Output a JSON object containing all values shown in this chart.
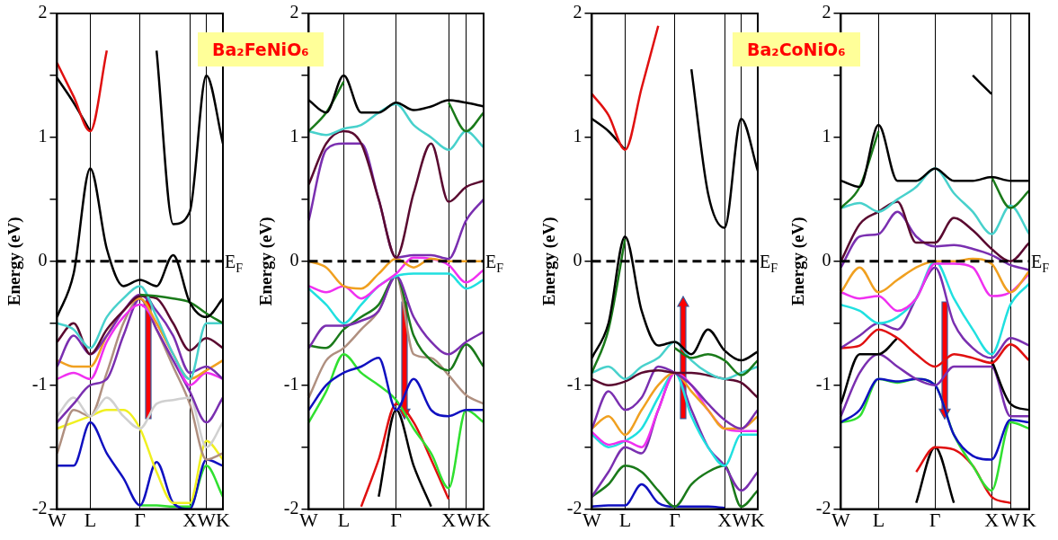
{
  "chart_data": [
    {
      "type": "line",
      "ylabel": "Energy (eV)",
      "annotations": [
        "Ba₂FeNiO₆"
      ],
      "grid": "x",
      "ylim": [
        -2,
        2
      ],
      "categories": [
        "W",
        null,
        "L",
        null,
        null,
        "Γ",
        null,
        null,
        "X",
        "W",
        "K"
      ],
      "yticks": [
        -2,
        {
          "value": -1.5,
          "label": null
        },
        -1,
        {
          "value": -0.5,
          "label": null
        },
        0,
        {
          "value": 0.5,
          "label": null
        },
        1,
        {
          "value": 1.5,
          "label": null
        },
        2
      ],
      "ref_lines": [
        {
          "axis": "y",
          "value": 0,
          "label": "E$_{F}$",
          "line_style": "dashed",
          "color": "#000000"
        }
      ],
      "series": [
        {
          "color": "#e01010",
          "values": [
            1.6,
            1.33,
            1.05,
            1.7,
            null,
            null,
            null,
            null,
            null,
            null,
            null
          ]
        },
        {
          "color": "#000000",
          "values": [
            1.48,
            1.28,
            1.05,
            null,
            null,
            null,
            1.7,
            0.3,
            0.4,
            1.5,
            0.95
          ]
        },
        {
          "color": "#000000",
          "values": [
            -0.45,
            -0.1,
            0.75,
            0.1,
            -0.2,
            -0.15,
            -0.2,
            0.05,
            -0.33,
            -0.45,
            -0.3
          ]
        },
        {
          "color": "#1a7a1a",
          "values": [
            null,
            null,
            null,
            null,
            null,
            -0.27,
            -0.28,
            -0.3,
            -0.33,
            -0.42,
            -0.5
          ]
        },
        {
          "color": "#48d1cc",
          "values": [
            -0.5,
            -0.55,
            -0.7,
            -0.45,
            -0.3,
            -0.2,
            -0.45,
            -0.75,
            -0.95,
            -0.5,
            -0.5
          ]
        },
        {
          "color": "#5a0a30",
          "values": [
            -0.65,
            -0.5,
            -0.75,
            -0.55,
            -0.4,
            -0.28,
            -0.3,
            -0.5,
            -0.72,
            -0.62,
            -0.7
          ]
        },
        {
          "color": "#7a2fb0",
          "values": [
            -0.85,
            -0.6,
            -0.75,
            -0.6,
            -0.4,
            -0.27,
            -0.4,
            -0.6,
            -0.9,
            -0.85,
            -0.95
          ]
        },
        {
          "color": "#f0a020",
          "values": [
            -0.8,
            -0.85,
            -0.85,
            -0.6,
            -0.4,
            -0.3,
            -0.5,
            -0.75,
            -0.95,
            -0.88,
            -0.8
          ]
        },
        {
          "color": "#f030f0",
          "values": [
            -0.95,
            -0.9,
            -0.95,
            -0.65,
            -0.45,
            -0.35,
            -0.5,
            -0.75,
            -1.0,
            -0.9,
            -0.95
          ]
        },
        {
          "color": "#7a2fb0",
          "values": [
            -1.3,
            -1.15,
            -1.0,
            -0.95,
            -0.6,
            -0.3,
            -0.55,
            -0.8,
            -1.05,
            -1.3,
            -1.1
          ]
        },
        {
          "color": "#d0d0d0",
          "values": [
            -1.25,
            -1.1,
            -1.25,
            -1.1,
            -1.25,
            -1.35,
            -1.15,
            -1.12,
            -1.1,
            -1.5,
            -1.3
          ]
        },
        {
          "color": "#b09080",
          "values": [
            -1.55,
            -1.2,
            -1.25,
            -0.9,
            -0.5,
            -0.3,
            -0.55,
            -0.85,
            -1.15,
            -1.6,
            -1.55
          ]
        },
        {
          "color": "#f0f020",
          "values": [
            -1.35,
            -1.3,
            -1.25,
            -1.2,
            -1.2,
            -1.35,
            -1.7,
            -1.95,
            -1.95,
            -1.45,
            -1.6
          ]
        },
        {
          "color": "#1010c0",
          "values": [
            -1.65,
            -1.65,
            -1.3,
            -1.55,
            -1.75,
            -1.97,
            -1.62,
            -1.95,
            -2.0,
            -1.6,
            -1.65
          ]
        },
        {
          "color": "#30e030",
          "values": [
            null,
            null,
            null,
            null,
            null,
            -1.97,
            -1.97,
            -1.98,
            -1.98,
            -1.65,
            -1.9
          ]
        }
      ]
    },
    {
      "type": "line",
      "ylabel": "Energy (eV)",
      "grid": "x",
      "ylim": [
        -2,
        2
      ],
      "categories": [
        "W",
        null,
        "L",
        null,
        null,
        "Γ",
        null,
        null,
        "X",
        "W",
        "K"
      ],
      "yticks": [
        -2,
        {
          "value": -1.5,
          "label": null
        },
        -1,
        {
          "value": -0.5,
          "label": null
        },
        0,
        {
          "value": 0.5,
          "label": null
        },
        1,
        {
          "value": 1.5,
          "label": null
        },
        2
      ],
      "ref_lines": [
        {
          "axis": "y",
          "value": 0,
          "label": "E$_{F}$",
          "line_style": "dashed",
          "color": "#000000"
        }
      ],
      "series": [
        {
          "color": "#000000",
          "values": [
            1.3,
            1.2,
            1.5,
            1.2,
            1.2,
            1.28,
            1.22,
            1.25,
            1.3,
            1.28,
            1.25
          ]
        },
        {
          "color": "#1a7a1a",
          "values": [
            1.05,
            1.2,
            1.45,
            null,
            null,
            null,
            null,
            null,
            1.28,
            1.05,
            1.2
          ]
        },
        {
          "color": "#48d1cc",
          "values": [
            1.05,
            1.02,
            1.07,
            1.1,
            1.2,
            1.27,
            1.1,
            1.0,
            0.9,
            1.05,
            0.92
          ]
        },
        {
          "color": "#5a0a30",
          "values": [
            0.62,
            0.95,
            1.05,
            0.95,
            0.5,
            0.03,
            0.55,
            0.95,
            0.48,
            0.6,
            0.65
          ]
        },
        {
          "color": "#7a2fb0",
          "values": [
            0.33,
            0.9,
            0.95,
            0.95,
            0.5,
            0.03,
            0.05,
            0.05,
            0.02,
            0.33,
            0.5
          ]
        },
        {
          "color": "#f0a020",
          "values": [
            0,
            -0.05,
            -0.2,
            -0.22,
            -0.1,
            0.02,
            -0.05,
            0.02,
            0,
            0,
            0
          ]
        },
        {
          "color": "#f030f0",
          "values": [
            -0.2,
            -0.25,
            -0.2,
            -0.3,
            -0.2,
            -0.1,
            0.03,
            0.02,
            -0.03,
            -0.17,
            -0.07
          ]
        },
        {
          "color": "#20e0e0",
          "values": [
            -0.22,
            -0.35,
            -0.5,
            -0.35,
            -0.2,
            -0.12,
            -0.1,
            -0.1,
            -0.1,
            -0.22,
            -0.15
          ]
        },
        {
          "color": "#7a2fb0",
          "values": [
            -0.7,
            -0.52,
            -0.52,
            -0.48,
            -0.4,
            -0.12,
            -0.45,
            -0.65,
            -0.75,
            -0.65,
            -0.57
          ]
        },
        {
          "color": "#1a7a1a",
          "values": [
            -0.68,
            -0.7,
            -0.55,
            -0.45,
            -0.35,
            -0.12,
            -0.6,
            -0.8,
            -0.88,
            -0.67,
            -0.85
          ]
        },
        {
          "color": "#b09080",
          "values": [
            -1.1,
            -0.8,
            -0.7,
            -0.55,
            -0.4,
            -0.12,
            -0.75,
            -0.78,
            -0.92,
            -1.08,
            -1.15
          ]
        },
        {
          "color": "#1010c0",
          "values": [
            -1.2,
            -1.0,
            -0.9,
            -0.85,
            -0.78,
            -1.2,
            -0.95,
            -1.2,
            -1.25,
            -1.2,
            -1.2
          ]
        },
        {
          "color": "#30e030",
          "values": [
            -1.3,
            -1.05,
            -0.75,
            -0.9,
            -1.0,
            -1.12,
            -1.35,
            -1.55,
            -1.83,
            -1.2,
            -1.3
          ]
        },
        {
          "color": "#e01010",
          "values": [
            null,
            null,
            null,
            -1.98,
            -1.6,
            -1.15,
            -1.3,
            -1.6,
            -1.92,
            null,
            null
          ]
        },
        {
          "color": "#000000",
          "values": [
            null,
            null,
            null,
            null,
            -1.9,
            -1.2,
            -1.65,
            -1.98,
            null,
            null,
            null
          ]
        }
      ]
    },
    {
      "type": "line",
      "ylabel": "Energy (eV)",
      "annotations": [
        "Ba₂CoNiO₆"
      ],
      "grid": "x",
      "ylim": [
        -2,
        2
      ],
      "categories": [
        "W",
        null,
        "L",
        null,
        null,
        "Γ",
        null,
        null,
        "X",
        "W",
        "K"
      ],
      "yticks": [
        -2,
        {
          "value": -1.5,
          "label": null
        },
        -1,
        {
          "value": -0.5,
          "label": null
        },
        0,
        {
          "value": 0.5,
          "label": null
        },
        1,
        {
          "value": 1.5,
          "label": null
        },
        2
      ],
      "ref_lines": [
        {
          "axis": "y",
          "value": 0,
          "label": "E$_{F}$",
          "line_style": "dashed",
          "color": "#000000"
        }
      ],
      "series": [
        {
          "color": "#e01010",
          "values": [
            1.35,
            1.18,
            0.9,
            1.4,
            1.9,
            null,
            null,
            null,
            null,
            null,
            null
          ]
        },
        {
          "color": "#000000",
          "values": [
            1.15,
            1.05,
            0.9,
            null,
            null,
            null,
            1.55,
            0.55,
            0.27,
            1.15,
            0.73
          ]
        },
        {
          "color": "#000000",
          "values": [
            -0.78,
            -0.5,
            0.2,
            -0.4,
            -0.68,
            -0.65,
            -0.75,
            -0.55,
            -0.72,
            -0.8,
            -0.73
          ]
        },
        {
          "color": "#1a7a1a",
          "values": [
            -0.9,
            -0.55,
            0.18,
            null,
            null,
            null,
            null,
            null,
            null,
            null,
            null
          ]
        },
        {
          "color": "#1a7a1a",
          "values": [
            null,
            null,
            null,
            null,
            null,
            -0.7,
            -0.78,
            -0.75,
            -0.8,
            -0.92,
            -0.8
          ]
        },
        {
          "color": "#48d1cc",
          "values": [
            -0.9,
            -0.85,
            -0.95,
            -0.85,
            -0.78,
            -0.65,
            -0.8,
            -0.9,
            -0.95,
            -0.9,
            -0.85
          ]
        },
        {
          "color": "#5a0a30",
          "values": [
            -0.95,
            -1.0,
            -0.97,
            -0.9,
            -0.88,
            -0.9,
            -0.9,
            -0.92,
            -0.95,
            -0.98,
            -1.1
          ]
        },
        {
          "color": "#7a2fb0",
          "values": [
            -1.35,
            -1.05,
            -1.2,
            -1.1,
            -0.85,
            -0.9,
            -1.0,
            -1.15,
            -1.28,
            -1.35,
            -1.2
          ]
        },
        {
          "color": "#f0a020",
          "values": [
            -1.35,
            -1.25,
            -1.4,
            -1.2,
            -1.0,
            -0.9,
            -1.05,
            -1.2,
            -1.35,
            -1.35,
            -1.25
          ]
        },
        {
          "color": "#f030f0",
          "values": [
            -1.38,
            -1.48,
            -1.45,
            -1.5,
            -1.2,
            -0.9,
            -1.0,
            -1.2,
            -1.35,
            -1.37,
            -1.37
          ]
        },
        {
          "color": "#20e0e0",
          "values": [
            -1.4,
            -1.5,
            -1.45,
            -1.35,
            -1.1,
            -0.9,
            -1.25,
            -1.5,
            -1.65,
            -1.4,
            -1.4
          ]
        },
        {
          "color": "#7a2fb0",
          "values": [
            -1.9,
            -1.7,
            -1.5,
            -1.55,
            -1.2,
            -0.9,
            -1.2,
            -1.5,
            -1.65,
            -1.85,
            -1.7
          ]
        },
        {
          "color": "#1a7a1a",
          "values": [
            -1.9,
            -1.8,
            -1.65,
            -1.7,
            -1.85,
            -1.98,
            -1.8,
            -1.7,
            -1.65,
            -1.98,
            -1.85
          ]
        },
        {
          "color": "#1010c0",
          "values": [
            -1.98,
            -1.97,
            -1.97,
            -1.8,
            -1.95,
            -1.98,
            -1.98,
            -1.98,
            -1.99,
            null,
            null
          ]
        }
      ]
    },
    {
      "type": "line",
      "ylabel": "Energy (eV)",
      "grid": "x",
      "ylim": [
        -2,
        2
      ],
      "categories": [
        "W",
        null,
        "L",
        null,
        null,
        "Γ",
        null,
        null,
        "X",
        "W",
        "K"
      ],
      "yticks": [
        -2,
        {
          "value": -1.5,
          "label": null
        },
        -1,
        {
          "value": -0.5,
          "label": null
        },
        0,
        {
          "value": 0.5,
          "label": null
        },
        1,
        {
          "value": 1.5,
          "label": null
        },
        2
      ],
      "ref_lines": [
        {
          "axis": "y",
          "value": 0,
          "label": "E$_{F}$",
          "line_style": "dashed",
          "color": "#000000"
        }
      ],
      "series": [
        {
          "color": "#000000",
          "values": [
            null,
            null,
            null,
            null,
            null,
            null,
            null,
            1.5,
            1.35,
            null,
            null
          ]
        },
        {
          "color": "#000000",
          "values": [
            0.65,
            0.6,
            1.1,
            0.65,
            0.65,
            0.75,
            0.65,
            0.65,
            0.68,
            0.65,
            0.65
          ]
        },
        {
          "color": "#1a7a1a",
          "values": [
            0.43,
            0.6,
            1.05,
            null,
            null,
            null,
            null,
            null,
            0.68,
            0.43,
            0.57
          ]
        },
        {
          "color": "#48d1cc",
          "values": [
            0.43,
            0.47,
            0.4,
            0.5,
            0.6,
            0.75,
            0.55,
            0.4,
            0.22,
            0.45,
            0.22
          ]
        },
        {
          "color": "#5a0a30",
          "values": [
            0.0,
            0.3,
            0.4,
            0.48,
            0.15,
            0.15,
            0.35,
            0.25,
            0.1,
            0.0,
            0.15
          ]
        },
        {
          "color": "#7a2fb0",
          "values": [
            -0.05,
            0.2,
            0.22,
            0.4,
            0.2,
            0.12,
            0.13,
            0.1,
            0.05,
            -0.03,
            -0.07
          ]
        },
        {
          "color": "#f0a020",
          "values": [
            -0.25,
            -0.05,
            -0.25,
            -0.15,
            -0.05,
            0.0,
            0.0,
            0.02,
            -0.02,
            -0.25,
            -0.08
          ]
        },
        {
          "color": "#f030f0",
          "values": [
            -0.25,
            -0.3,
            -0.28,
            -0.4,
            -0.3,
            -0.02,
            -0.02,
            -0.05,
            -0.28,
            -0.25,
            -0.1
          ]
        },
        {
          "color": "#20e0e0",
          "values": [
            -0.35,
            -0.4,
            -0.5,
            -0.45,
            -0.3,
            0.0,
            -0.3,
            -0.55,
            -0.75,
            -0.35,
            -0.18
          ]
        },
        {
          "color": "#7a2fb0",
          "values": [
            -0.7,
            -0.6,
            -0.5,
            -0.55,
            -0.3,
            -0.05,
            -0.5,
            -0.7,
            -0.78,
            -0.62,
            -0.68
          ]
        },
        {
          "color": "#e01010",
          "values": [
            -0.7,
            -0.68,
            -0.55,
            -0.62,
            -0.75,
            -0.85,
            -0.75,
            -0.78,
            -0.82,
            -0.67,
            -0.8
          ]
        },
        {
          "color": "#000000",
          "values": [
            -1.15,
            -0.75,
            -0.75,
            -0.62,
            null,
            null,
            null,
            null,
            -0.8,
            -1.15,
            -1.2
          ]
        },
        {
          "color": "#7a2fb0",
          "values": [
            -1.25,
            -0.9,
            -0.75,
            -0.85,
            -0.95,
            -1.0,
            -0.85,
            -0.85,
            -0.85,
            -1.25,
            -1.25
          ]
        },
        {
          "color": "#1010c0",
          "values": [
            -1.3,
            -1.2,
            -0.95,
            -0.97,
            -0.95,
            -1.0,
            -1.4,
            -1.57,
            -1.6,
            -1.28,
            -1.3
          ]
        },
        {
          "color": "#30e030",
          "values": [
            -1.3,
            -1.25,
            -0.95,
            -0.98,
            -0.95,
            -1.0,
            -1.4,
            -1.65,
            -1.85,
            -1.3,
            -1.35
          ]
        },
        {
          "color": "#e01010",
          "values": [
            null,
            null,
            null,
            null,
            -1.7,
            -1.5,
            -1.52,
            -1.65,
            -1.9,
            -1.95,
            null
          ]
        },
        {
          "color": "#000000",
          "values": [
            null,
            null,
            null,
            null,
            -1.95,
            -1.5,
            -1.95,
            null,
            null,
            null,
            null
          ]
        }
      ]
    }
  ]
}
